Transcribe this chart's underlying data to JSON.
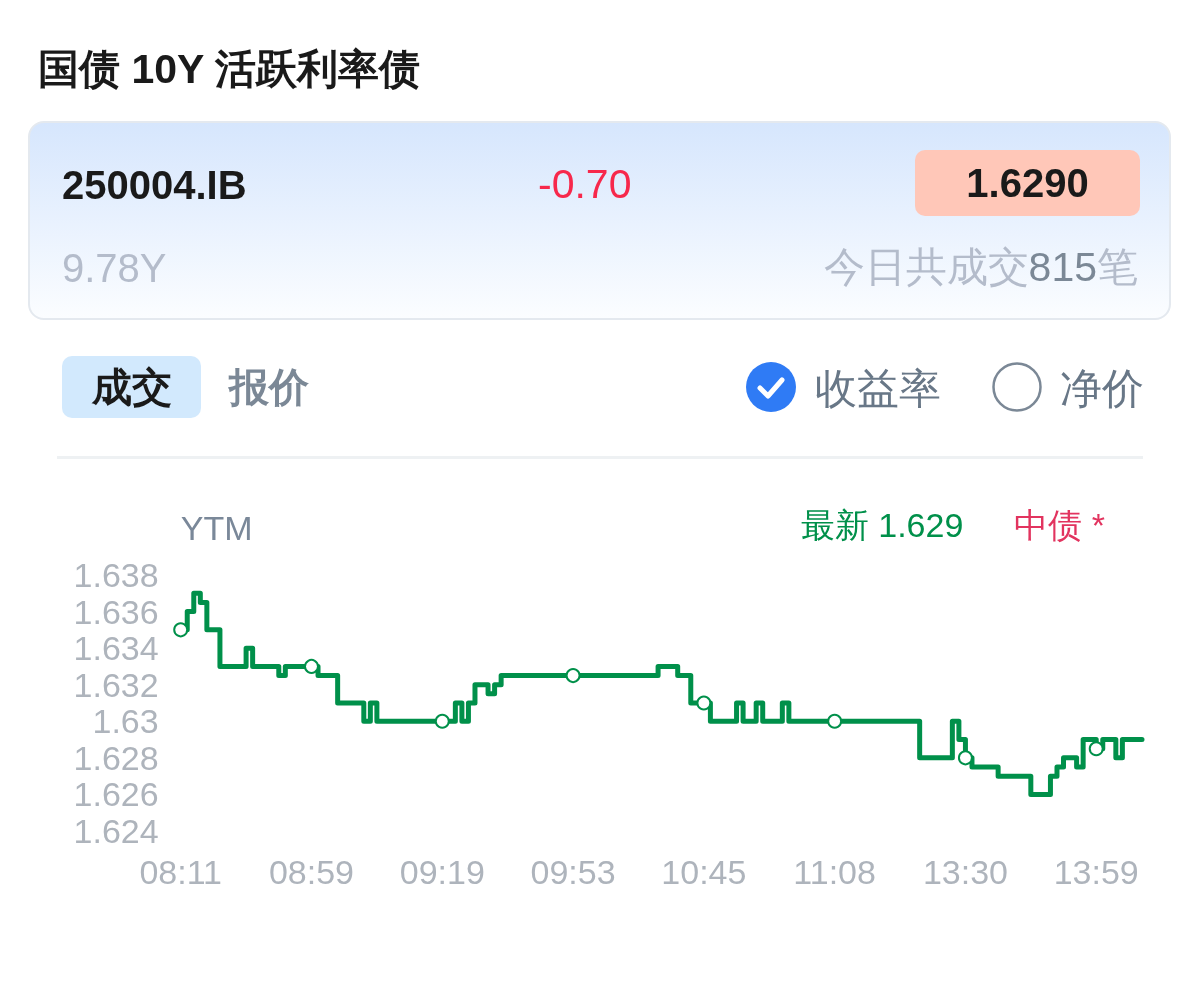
{
  "chart_data": {
    "type": "step",
    "title": "国债 10Y 活跃利率债",
    "ylabel": "YTM",
    "annotations": [
      "250004.IB",
      "-0.70",
      "1.6290",
      "9.78Y",
      "今日共成交815笔",
      "成交",
      "报价",
      "收益率",
      "净价"
    ],
    "categories": [
      "08:11",
      null,
      null,
      null,
      null,
      null,
      null,
      null,
      null,
      null,
      null,
      null,
      null,
      null,
      null,
      null,
      null,
      null,
      null,
      null,
      "08:59",
      null,
      null,
      null,
      null,
      null,
      null,
      null,
      null,
      null,
      null,
      null,
      null,
      null,
      null,
      null,
      null,
      null,
      null,
      null,
      "09:19",
      null,
      null,
      null,
      null,
      null,
      null,
      null,
      null,
      null,
      null,
      null,
      null,
      null,
      null,
      null,
      null,
      null,
      null,
      null,
      "09:53",
      null,
      null,
      null,
      null,
      null,
      null,
      null,
      null,
      null,
      null,
      null,
      null,
      null,
      null,
      null,
      null,
      null,
      null,
      null,
      "10:45",
      null,
      null,
      null,
      null,
      null,
      null,
      null,
      null,
      null,
      null,
      null,
      null,
      null,
      null,
      null,
      null,
      null,
      null,
      null,
      "11:08",
      null,
      null,
      null,
      null,
      null,
      null,
      null,
      null,
      null,
      null,
      null,
      null,
      null,
      null,
      null,
      null,
      null,
      null,
      null,
      "13:30",
      null,
      null,
      null,
      null,
      null,
      null,
      null,
      null,
      null,
      null,
      null,
      null,
      null,
      null,
      null,
      null,
      null,
      null,
      null,
      "13:59",
      null,
      null,
      null,
      null,
      null,
      null,
      null
    ],
    "series": [
      {
        "name": "最新 1.629",
        "color": "#00904a",
        "values": [
          1.635,
          1.636,
          1.637,
          1.6365,
          1.635,
          1.635,
          1.633,
          1.633,
          1.633,
          1.633,
          1.634,
          1.633,
          1.633,
          1.633,
          1.633,
          1.6325,
          1.633,
          1.633,
          1.633,
          1.633,
          1.633,
          1.6325,
          1.6325,
          1.6325,
          1.631,
          1.631,
          1.631,
          1.631,
          1.63,
          1.631,
          1.63,
          1.63,
          1.63,
          1.63,
          1.63,
          1.63,
          1.63,
          1.63,
          1.63,
          1.63,
          1.63,
          1.63,
          1.631,
          1.63,
          1.631,
          1.632,
          1.632,
          1.6315,
          1.632,
          1.6325,
          1.6325,
          1.6325,
          1.6325,
          1.6325,
          1.6325,
          1.6325,
          1.6325,
          1.6325,
          1.6325,
          1.6325,
          1.6325,
          1.6325,
          1.6325,
          1.6325,
          1.6325,
          1.6325,
          1.6325,
          1.6325,
          1.6325,
          1.6325,
          1.6325,
          1.6325,
          1.6325,
          1.633,
          1.633,
          1.633,
          1.6325,
          1.6325,
          1.631,
          1.631,
          1.631,
          1.63,
          1.63,
          1.63,
          1.63,
          1.631,
          1.63,
          1.63,
          1.631,
          1.63,
          1.63,
          1.63,
          1.631,
          1.63,
          1.63,
          1.63,
          1.63,
          1.63,
          1.63,
          1.63,
          1.63,
          1.63,
          1.63,
          1.63,
          1.63,
          1.63,
          1.63,
          1.63,
          1.63,
          1.63,
          1.63,
          1.63,
          1.63,
          1.628,
          1.628,
          1.628,
          1.628,
          1.628,
          1.63,
          1.629,
          1.628,
          1.6275,
          1.6275,
          1.6275,
          1.6275,
          1.627,
          1.627,
          1.627,
          1.627,
          1.627,
          1.626,
          1.626,
          1.626,
          1.627,
          1.6275,
          1.628,
          1.628,
          1.6275,
          1.629,
          1.629,
          1.6285,
          1.629,
          1.629,
          1.628,
          1.629,
          1.629,
          1.629,
          1.629
        ]
      },
      {
        "type": "scatter",
        "color": "#00904a",
        "marker": "circle",
        "x": [
          "08:11",
          "08:59",
          "09:19",
          "09:53",
          "10:45",
          "11:08",
          "13:30",
          "13:59"
        ],
        "values": [
          1.635,
          1.633,
          1.63,
          1.6325,
          1.631,
          1.63,
          1.628,
          1.6285
        ]
      },
      {
        "name": "中债 *",
        "color": "#e2345f",
        "values": [
          null,
          null,
          null,
          null,
          null,
          null,
          null,
          null,
          null,
          null,
          null,
          null,
          null,
          null,
          null,
          null,
          null,
          null,
          null,
          null,
          null,
          null,
          null,
          null,
          null,
          null,
          null,
          null,
          null,
          null,
          null,
          null,
          null,
          null,
          null,
          null,
          null,
          null,
          null,
          null,
          null,
          null,
          null,
          null,
          null,
          null,
          null,
          null,
          null,
          null,
          null,
          null,
          null,
          null,
          null,
          null,
          null,
          null,
          null,
          null,
          null,
          null,
          null,
          null,
          null,
          null,
          null,
          null,
          null,
          null,
          null,
          null,
          null,
          null,
          null,
          null,
          null,
          null,
          null,
          null,
          null,
          null,
          null,
          null,
          null,
          null,
          null,
          null,
          null,
          null,
          null,
          null,
          null,
          null,
          null,
          null,
          null,
          null,
          null,
          null,
          null,
          null,
          null,
          null,
          null,
          null,
          null,
          null,
          null,
          null,
          null,
          null,
          null,
          null,
          null,
          null,
          null,
          null,
          null,
          null,
          null,
          null,
          null,
          null,
          null,
          null,
          null,
          null,
          null,
          null,
          null,
          null,
          null,
          null,
          null,
          null,
          null,
          null,
          null,
          null,
          null,
          null,
          null,
          null,
          null,
          null,
          null,
          null
        ]
      }
    ],
    "ylim": [
      1.624,
      1.638
    ],
    "yticks": [
      1.624,
      1.626,
      1.628,
      1.63,
      1.632,
      1.634,
      1.636,
      1.638
    ],
    "legend": "top right",
    "line_style": "solid"
  }
}
